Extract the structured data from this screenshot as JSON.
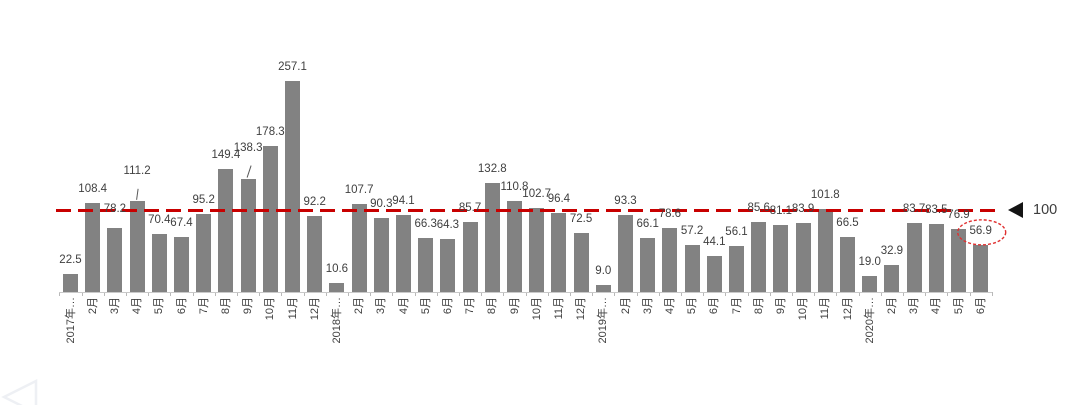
{
  "chart_data": {
    "type": "bar",
    "title": "",
    "xlabel": "",
    "ylabel": "",
    "categories": [
      "2017年…",
      "2月",
      "3月",
      "4月",
      "5月",
      "6月",
      "7月",
      "8月",
      "9月",
      "10月",
      "11月",
      "12月",
      "2018年…",
      "2月",
      "3月",
      "4月",
      "5月",
      "6月",
      "7月",
      "8月",
      "9月",
      "10月",
      "11月",
      "12月",
      "2019年…",
      "2月",
      "3月",
      "4月",
      "5月",
      "6月",
      "7月",
      "8月",
      "9月",
      "10月",
      "11月",
      "12月",
      "2020年…",
      "2月",
      "3月",
      "4月",
      "5月",
      "6月"
    ],
    "values": [
      22.5,
      108.4,
      78.2,
      111.2,
      70.4,
      67.4,
      95.2,
      149.4,
      138.3,
      178.3,
      257.1,
      92.2,
      10.6,
      107.7,
      90.3,
      94.1,
      66.3,
      64.3,
      85.7,
      132.8,
      110.8,
      102.7,
      96.4,
      72.5,
      9.0,
      93.3,
      66.1,
      78.6,
      57.2,
      44.1,
      56.1,
      85.6,
      81.1,
      83.9,
      101.8,
      66.5,
      19.0,
      32.9,
      83.7,
      83.5,
      76.9,
      56.9
    ],
    "ylim": [
      0,
      270
    ],
    "grid": false,
    "legend": false,
    "bar_color": "#828282",
    "value_label_color": "#404040",
    "reference_line": {
      "value": 100,
      "label": "100",
      "color": "#c80000",
      "marker": "left-triangle",
      "marker_color": "#141414"
    },
    "annotations": {
      "circled_value_index": 41,
      "circled_value": "56.9",
      "circle_color": "#e03030",
      "label_leader_line_indices": [
        3,
        8
      ],
      "raised_label_indices": [
        2
      ]
    }
  }
}
